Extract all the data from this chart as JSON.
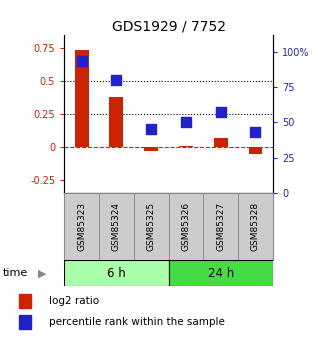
{
  "title": "GDS1929 / 7752",
  "samples": [
    "GSM85323",
    "GSM85324",
    "GSM85325",
    "GSM85326",
    "GSM85327",
    "GSM85328"
  ],
  "log2_ratio": [
    0.73,
    0.38,
    -0.03,
    0.01,
    0.07,
    -0.05
  ],
  "percentile_rank": [
    93,
    80,
    45,
    50,
    57,
    43
  ],
  "group_labels": [
    "6 h",
    "24 h"
  ],
  "group_colors": [
    "#AAFFAA",
    "#44DD44"
  ],
  "group_splits": [
    3
  ],
  "bar_color": "#CC2200",
  "dot_color": "#2222CC",
  "left_ylabel_color": "#CC2200",
  "right_ylabel_color": "#2222CC",
  "left_ylim": [
    -0.35,
    0.85
  ],
  "right_ylim": [
    0,
    112
  ],
  "left_yticks": [
    -0.25,
    0.0,
    0.25,
    0.5,
    0.75
  ],
  "right_yticks": [
    0,
    25,
    50,
    75,
    100
  ],
  "right_yticklabels": [
    "0",
    "25",
    "50",
    "75",
    "100%"
  ],
  "hlines": [
    0.25,
    0.5
  ],
  "bar_width": 0.4,
  "dot_size": 45,
  "background_color": "#FFFFFF",
  "legend_log2": "log2 ratio",
  "legend_pct": "percentile rank within the sample",
  "sample_box_color": "#CCCCCC",
  "sample_box_edge": "#888888"
}
